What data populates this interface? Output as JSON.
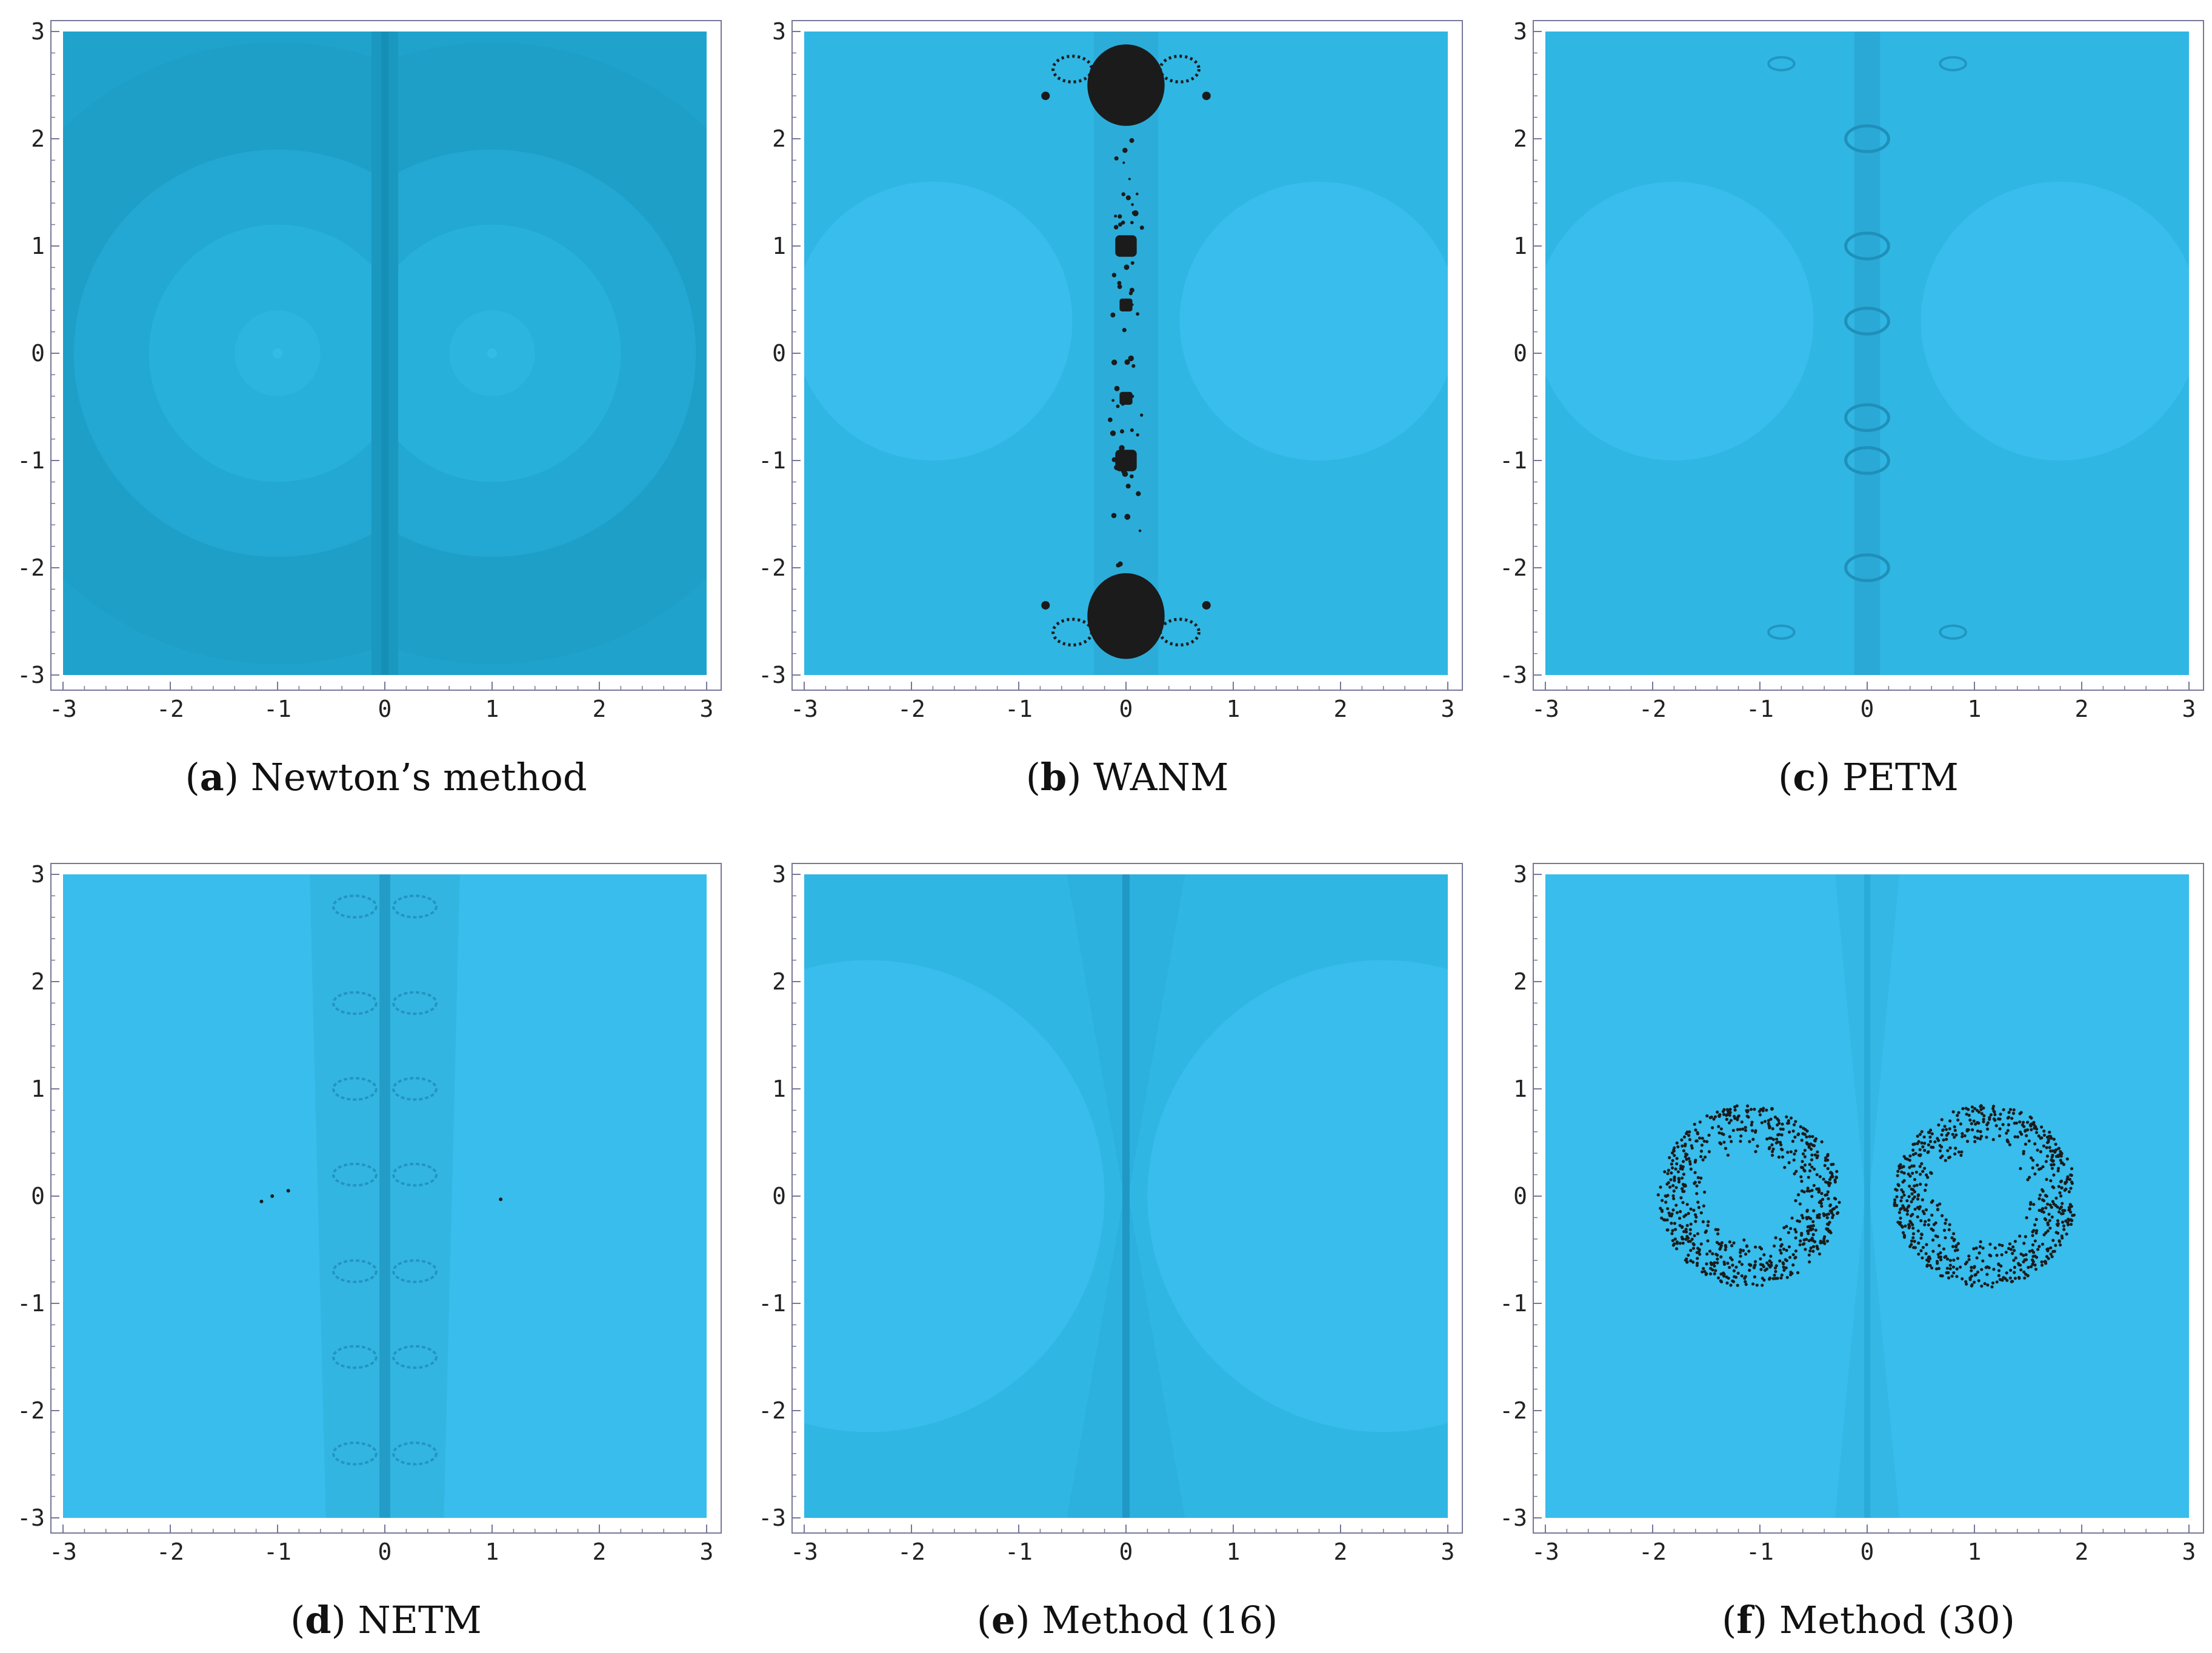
{
  "colors": {
    "basin_light": "#38bdec",
    "basin_mid": "#30b6e3",
    "basin_dark": "#26a6d2",
    "newton_bg": "#1fa3cc",
    "newton_dark": "#168fb6",
    "fractal_black": "#1b1b1b",
    "frame": "#777799"
  },
  "panels": [
    {
      "id": "a",
      "letter": "a",
      "label": "Newton’s method",
      "style": "newton"
    },
    {
      "id": "b",
      "letter": "b",
      "label": "WANM",
      "style": "wanm"
    },
    {
      "id": "c",
      "letter": "c",
      "label": "PETM",
      "style": "petm"
    },
    {
      "id": "d",
      "letter": "d",
      "label": "NETM",
      "style": "netm"
    },
    {
      "id": "e",
      "letter": "e",
      "label": "Method (16)",
      "style": "m16"
    },
    {
      "id": "f",
      "letter": "f",
      "label": "Method (30)",
      "style": "m30"
    }
  ],
  "chart_data": [
    {
      "type": "heatmap",
      "caption": "(a) Newton’s method",
      "xlim": [
        -3,
        3
      ],
      "ylim": [
        -3,
        3
      ],
      "x_ticks": [
        -3,
        -2,
        -1,
        0,
        1,
        2,
        3
      ],
      "y_ticks": [
        -3,
        -2,
        -1,
        0,
        1,
        2,
        3
      ],
      "roots": [
        [
          -1,
          0
        ],
        [
          1,
          0
        ]
      ]
    },
    {
      "type": "heatmap",
      "caption": "(b) WANM",
      "xlim": [
        -3,
        3
      ],
      "ylim": [
        -3,
        3
      ],
      "x_ticks": [
        -3,
        -2,
        -1,
        0,
        1,
        2,
        3
      ],
      "y_ticks": [
        -3,
        -2,
        -1,
        0,
        1,
        2,
        3
      ],
      "nonconvergent_blobs": [
        [
          0,
          2.5
        ],
        [
          0,
          -2.5
        ],
        [
          0,
          1
        ],
        [
          0,
          -1
        ],
        [
          0,
          0.45
        ],
        [
          0,
          -0.42
        ]
      ]
    },
    {
      "type": "heatmap",
      "caption": "(c) PETM",
      "xlim": [
        -3,
        3
      ],
      "ylim": [
        -3,
        3
      ],
      "x_ticks": [
        -3,
        -2,
        -1,
        0,
        1,
        2,
        3
      ],
      "y_ticks": [
        -3,
        -2,
        -1,
        0,
        1,
        2,
        3
      ]
    },
    {
      "type": "heatmap",
      "caption": "(d) NETM",
      "xlim": [
        -3,
        3
      ],
      "ylim": [
        -3,
        3
      ],
      "x_ticks": [
        -3,
        -2,
        -1,
        0,
        1,
        2,
        3
      ],
      "y_ticks": [
        -3,
        -2,
        -1,
        0,
        1,
        2,
        3
      ]
    },
    {
      "type": "heatmap",
      "caption": "(e) Method (16)",
      "xlim": [
        -3,
        3
      ],
      "ylim": [
        -3,
        3
      ],
      "x_ticks": [
        -3,
        -2,
        -1,
        0,
        1,
        2,
        3
      ],
      "y_ticks": [
        -3,
        -2,
        -1,
        0,
        1,
        2,
        3
      ]
    },
    {
      "type": "heatmap",
      "caption": "(f) Method (30)",
      "xlim": [
        -3,
        3
      ],
      "ylim": [
        -3,
        3
      ],
      "x_ticks": [
        -3,
        -2,
        -1,
        0,
        1,
        2,
        3
      ],
      "y_ticks": [
        -3,
        -2,
        -1,
        0,
        1,
        2,
        3
      ],
      "scatter_rings": [
        {
          "center": [
            -1.1,
            0
          ],
          "inner_r": 0.4,
          "outer_r": 0.85
        },
        {
          "center": [
            1.1,
            0
          ],
          "inner_r": 0.4,
          "outer_r": 0.85
        }
      ]
    }
  ]
}
